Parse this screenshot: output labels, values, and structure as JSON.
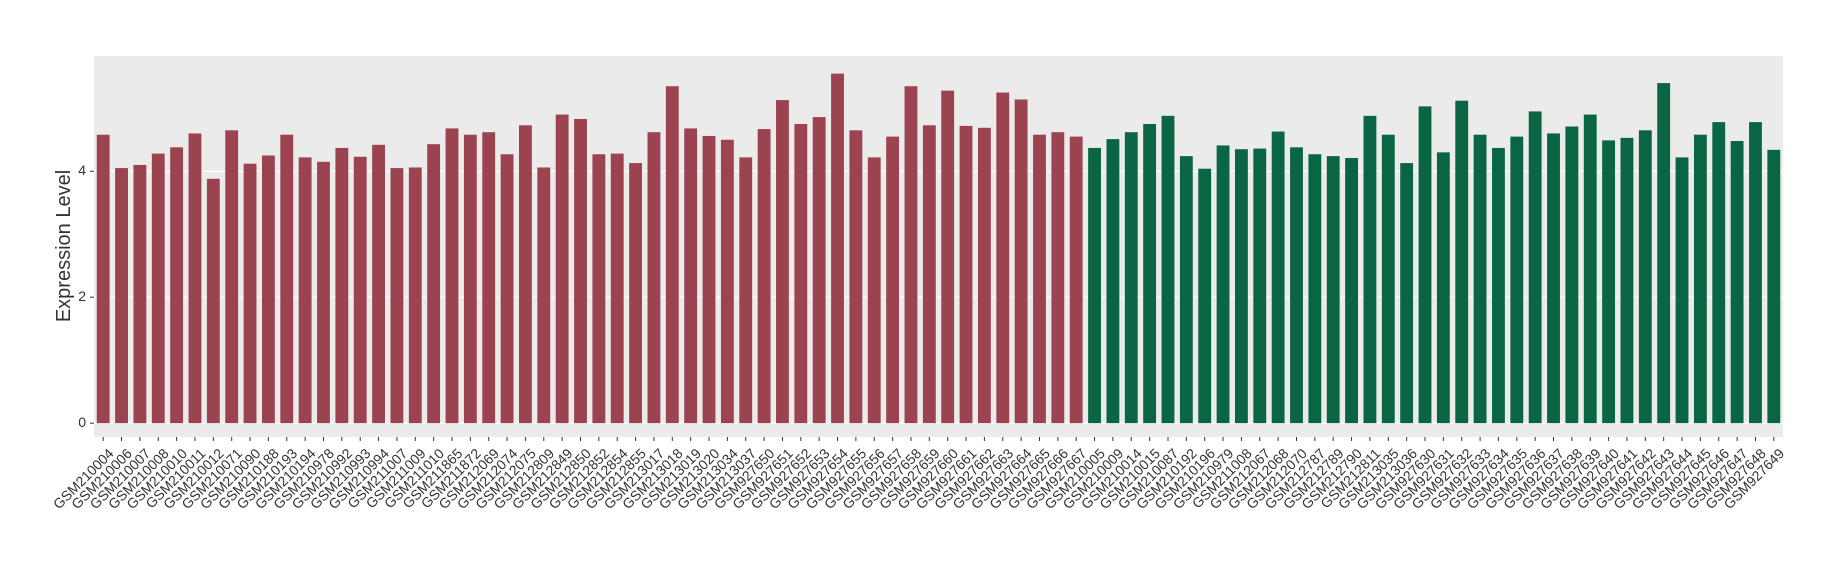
{
  "chart_data": {
    "type": "bar",
    "y_label": "Expression Level",
    "categories": [
      "GSM210004",
      "GSM210006",
      "GSM210007",
      "GSM210008",
      "GSM210010",
      "GSM210011",
      "GSM210012",
      "GSM210071",
      "GSM210090",
      "GSM210188",
      "GSM210193",
      "GSM210194",
      "GSM210978",
      "GSM210992",
      "GSM210993",
      "GSM210994",
      "GSM211007",
      "GSM211009",
      "GSM211010",
      "GSM211865",
      "GSM211872",
      "GSM212069",
      "GSM212074",
      "GSM212075",
      "GSM212809",
      "GSM212849",
      "GSM212850",
      "GSM212852",
      "GSM212854",
      "GSM212855",
      "GSM213017",
      "GSM213018",
      "GSM213019",
      "GSM213020",
      "GSM213034",
      "GSM213037",
      "GSM927650",
      "GSM927651",
      "GSM927652",
      "GSM927653",
      "GSM927654",
      "GSM927655",
      "GSM927656",
      "GSM927657",
      "GSM927658",
      "GSM927659",
      "GSM927660",
      "GSM927661",
      "GSM927662",
      "GSM927663",
      "GSM927664",
      "GSM927665",
      "GSM927666",
      "GSM927667",
      "GSM210005",
      "GSM210009",
      "GSM210014",
      "GSM210015",
      "GSM210087",
      "GSM210192",
      "GSM210196",
      "GSM210979",
      "GSM211008",
      "GSM212067",
      "GSM212068",
      "GSM212070",
      "GSM212787",
      "GSM212789",
      "GSM212790",
      "GSM212811",
      "GSM213035",
      "GSM213036",
      "GSM927630",
      "GSM927631",
      "GSM927632",
      "GSM927633",
      "GSM927634",
      "GSM927635",
      "GSM927636",
      "GSM927637",
      "GSM927638",
      "GSM927639",
      "GSM927640",
      "GSM927641",
      "GSM927642",
      "GSM927643",
      "GSM927644",
      "GSM927645",
      "GSM927646",
      "GSM927647",
      "GSM927648",
      "GSM927649"
    ],
    "values": [
      4.58,
      4.05,
      4.1,
      4.28,
      4.38,
      4.6,
      3.88,
      4.65,
      4.12,
      4.25,
      4.58,
      4.22,
      4.15,
      4.37,
      4.23,
      4.42,
      4.05,
      4.06,
      4.43,
      4.68,
      4.58,
      4.62,
      4.27,
      4.73,
      4.06,
      4.9,
      4.83,
      4.27,
      4.28,
      4.13,
      4.62,
      5.35,
      4.68,
      4.56,
      4.5,
      4.22,
      4.67,
      5.13,
      4.75,
      4.86,
      5.55,
      4.65,
      4.22,
      4.55,
      5.35,
      4.73,
      5.28,
      4.72,
      4.69,
      5.25,
      5.14,
      4.58,
      4.62,
      4.55,
      4.37,
      4.51,
      4.62,
      4.75,
      4.88,
      4.24,
      4.04,
      4.41,
      4.35,
      4.36,
      4.63,
      4.38,
      4.27,
      4.24,
      4.21,
      4.88,
      4.58,
      4.13,
      5.03,
      4.3,
      5.12,
      4.58,
      4.37,
      4.55,
      4.95,
      4.6,
      4.71,
      4.9,
      4.49,
      4.53,
      4.65,
      5.4,
      4.22,
      4.58,
      4.78,
      4.48,
      4.78,
      4.34
    ],
    "colors": [
      "#9b4450",
      "#9b4450",
      "#9b4450",
      "#9b4450",
      "#9b4450",
      "#9b4450",
      "#9b4450",
      "#9b4450",
      "#9b4450",
      "#9b4450",
      "#9b4450",
      "#9b4450",
      "#9b4450",
      "#9b4450",
      "#9b4450",
      "#9b4450",
      "#9b4450",
      "#9b4450",
      "#9b4450",
      "#9b4450",
      "#9b4450",
      "#9b4450",
      "#9b4450",
      "#9b4450",
      "#9b4450",
      "#9b4450",
      "#9b4450",
      "#9b4450",
      "#9b4450",
      "#9b4450",
      "#9b4450",
      "#9b4450",
      "#9b4450",
      "#9b4450",
      "#9b4450",
      "#9b4450",
      "#9b4450",
      "#9b4450",
      "#9b4450",
      "#9b4450",
      "#9b4450",
      "#9b4450",
      "#9b4450",
      "#9b4450",
      "#9b4450",
      "#9b4450",
      "#9b4450",
      "#9b4450",
      "#9b4450",
      "#9b4450",
      "#9b4450",
      "#9b4450",
      "#9b4450",
      "#9b4450",
      "#0a6642",
      "#0a6642",
      "#0a6642",
      "#0a6642",
      "#0a6642",
      "#0a6642",
      "#0a6642",
      "#0a6642",
      "#0a6642",
      "#0a6642",
      "#0a6642",
      "#0a6642",
      "#0a6642",
      "#0a6642",
      "#0a6642",
      "#0a6642",
      "#0a6642",
      "#0a6642",
      "#0a6642",
      "#0a6642",
      "#0a6642",
      "#0a6642",
      "#0a6642",
      "#0a6642",
      "#0a6642",
      "#0a6642",
      "#0a6642",
      "#0a6642",
      "#0a6642",
      "#0a6642",
      "#0a6642",
      "#0a6642",
      "#0a6642",
      "#0a6642",
      "#0a6642",
      "#0a6642",
      "#0a6642",
      "#0a6642"
    ],
    "ylim": [
      -0.22,
      5.83
    ],
    "yticks": [
      0,
      2,
      4
    ],
    "grid": true
  }
}
